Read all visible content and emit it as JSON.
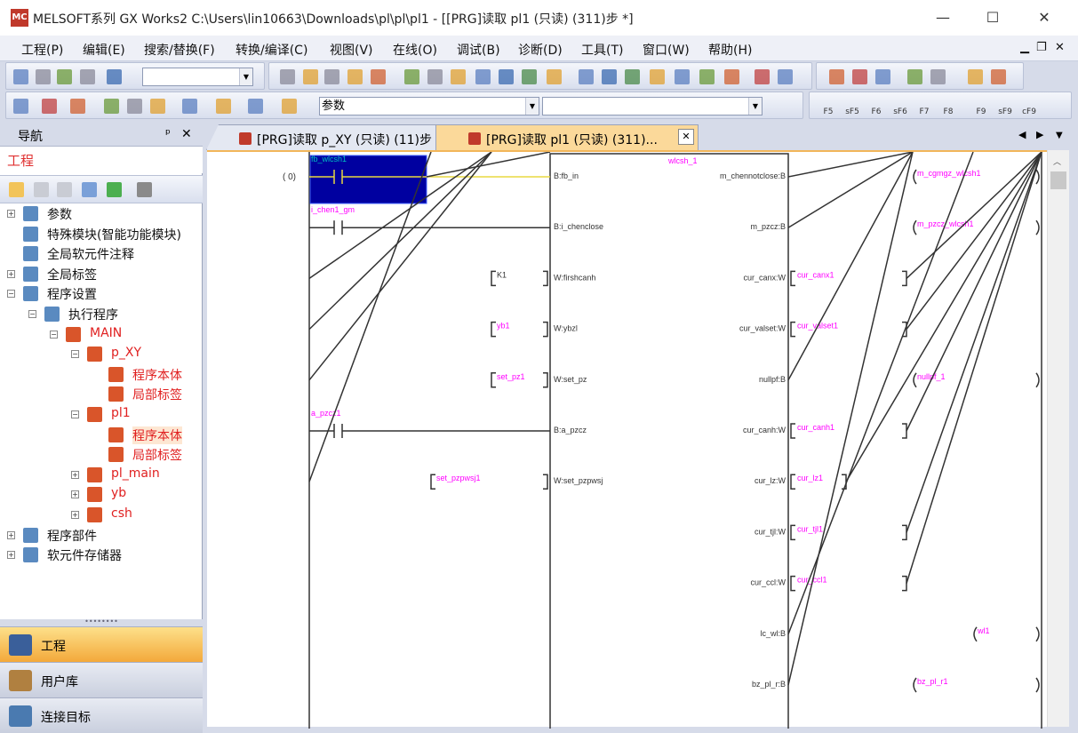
{
  "window": {
    "icon_text": "MC",
    "title": "MELSOFT系列 GX Works2 C:\\Users\\lin10663\\Downloads\\pl\\pl\\pl1 - [[PRG]读取 pl1 (只读) (311)步 *]",
    "min": "—",
    "max": "☐",
    "close": "✕"
  },
  "menu": [
    "工程(P)",
    "编辑(E)",
    "搜索/替换(F)",
    "转换/编译(C)",
    "视图(V)",
    "在线(O)",
    "调试(B)",
    "诊断(D)",
    "工具(T)",
    "窗口(W)",
    "帮助(H)"
  ],
  "mdi_controls": {
    "min": "▁",
    "restore": "❐",
    "close": "✕"
  },
  "toolbar": {
    "combo1_value": "",
    "combo2_value": "参数",
    "combo3_value": "",
    "fkeys": [
      "F5",
      "sF5",
      "F6",
      "sF6",
      "F7",
      "F8",
      "F9",
      "sF9",
      "cF9"
    ]
  },
  "navigation": {
    "title": "导航",
    "pin": "ᵖ",
    "close": "✕",
    "project_header": "工程",
    "tree": [
      {
        "label": "参数",
        "level": 0,
        "exp": "+",
        "red": false,
        "icon": "parameter-icon"
      },
      {
        "label": "特殊模块(智能功能模块)",
        "level": 0,
        "exp": "",
        "red": false,
        "icon": "module-icon"
      },
      {
        "label": "全局软元件注释",
        "level": 0,
        "exp": "",
        "red": false,
        "icon": "comment-icon"
      },
      {
        "label": "全局标签",
        "level": 0,
        "exp": "+",
        "red": false,
        "icon": "label-icon"
      },
      {
        "label": "程序设置",
        "level": 0,
        "exp": "-",
        "red": false,
        "icon": "program-setting-icon"
      },
      {
        "label": "执行程序",
        "level": 1,
        "exp": "-",
        "red": false,
        "icon": "execute-icon"
      },
      {
        "label": "MAIN",
        "level": 2,
        "exp": "-",
        "red": true,
        "icon": "task-icon"
      },
      {
        "label": "p_XY",
        "level": 3,
        "exp": "-",
        "red": true,
        "icon": "program-icon"
      },
      {
        "label": "程序本体",
        "level": 4,
        "exp": "",
        "red": true,
        "icon": "program-body-icon"
      },
      {
        "label": "局部标签",
        "level": 4,
        "exp": "",
        "red": true,
        "icon": "local-label-icon"
      },
      {
        "label": "pl1",
        "level": 3,
        "exp": "-",
        "red": true,
        "icon": "program-icon"
      },
      {
        "label": "程序本体",
        "level": 4,
        "exp": "",
        "red": true,
        "icon": "program-body-icon",
        "selected": true
      },
      {
        "label": "局部标签",
        "level": 4,
        "exp": "",
        "red": true,
        "icon": "local-label-icon"
      },
      {
        "label": "pl_main",
        "level": 3,
        "exp": "+",
        "red": true,
        "icon": "program-icon"
      },
      {
        "label": "yb",
        "level": 3,
        "exp": "+",
        "red": true,
        "icon": "program-icon"
      },
      {
        "label": "csh",
        "level": 3,
        "exp": "+",
        "red": true,
        "icon": "program-icon"
      },
      {
        "label": "程序部件",
        "level": 0,
        "exp": "+",
        "red": false,
        "icon": "pou-icon"
      },
      {
        "label": "软元件存储器",
        "level": 0,
        "exp": "+",
        "red": false,
        "icon": "device-memory-icon"
      }
    ],
    "bottom_buttons": [
      {
        "label": "工程",
        "active": true
      },
      {
        "label": "用户库",
        "active": false
      },
      {
        "label": "连接目标",
        "active": false
      }
    ]
  },
  "tabs": [
    {
      "label": "[PRG]读取 p_XY (只读) (11)步 *",
      "active": false
    },
    {
      "label": "[PRG]读取 pl1 (只读) (311)...",
      "active": true
    }
  ],
  "tab_nav": {
    "prev": "◀",
    "next": "▶",
    "menu": "▼",
    "close": "✕"
  },
  "ladder": {
    "step": "(     0)",
    "fb_instance": "wlcsh_1",
    "colors": {
      "label": "#ff00ff",
      "text": "#333333",
      "selection": "#0000a0",
      "selected_label": "#00c0c0"
    },
    "inputs": [
      {
        "type": "contact",
        "label": "fb_wlcsh1",
        "pin": "B:fb_in",
        "selected": true
      },
      {
        "type": "contact",
        "label": "i_chen1_gm",
        "pin": "B:i_chenclose"
      },
      {
        "type": "bracket",
        "label": "K1",
        "pin": "W:firshcanh",
        "constant": true
      },
      {
        "type": "bracket",
        "label": "yb1",
        "pin": "W:ybzl"
      },
      {
        "type": "bracket",
        "label": "set_pz1",
        "pin": "W:set_pz"
      },
      {
        "type": "contact",
        "label": "a_pzcz1",
        "pin": "B:a_pzcz"
      },
      {
        "type": "bracket_long",
        "label": "set_pzpwsj1",
        "pin": "W:set_pzpwsj"
      }
    ],
    "outputs": [
      {
        "pin": "m_chennotclose:B",
        "type": "coil",
        "label": "m_cgmgz_wlcsh1"
      },
      {
        "pin": "m_pzcz:B",
        "type": "coil",
        "label": "m_pzcz_wlcsh1"
      },
      {
        "pin": "cur_canx:W",
        "type": "bracket",
        "label": "cur_canx1"
      },
      {
        "pin": "cur_valset:W",
        "type": "bracket",
        "label": "cur_valset1"
      },
      {
        "pin": "nullpf:B",
        "type": "coil",
        "label": "nullpf_1"
      },
      {
        "pin": "cur_canh:W",
        "type": "bracket",
        "label": "cur_canh1"
      },
      {
        "pin": "cur_lz:W",
        "type": "bracket_short",
        "label": "cur_lz1"
      },
      {
        "pin": "cur_tjl:W",
        "type": "bracket",
        "label": "cur_tjl1"
      },
      {
        "pin": "cur_ccl:W",
        "type": "bracket",
        "label": "cur_ccl1"
      },
      {
        "pin": "lc_wl:B",
        "type": "coil_right",
        "label": "wl1"
      },
      {
        "pin": "bz_pl_r:B",
        "type": "coil",
        "label": "bz_pl_r1"
      }
    ]
  }
}
